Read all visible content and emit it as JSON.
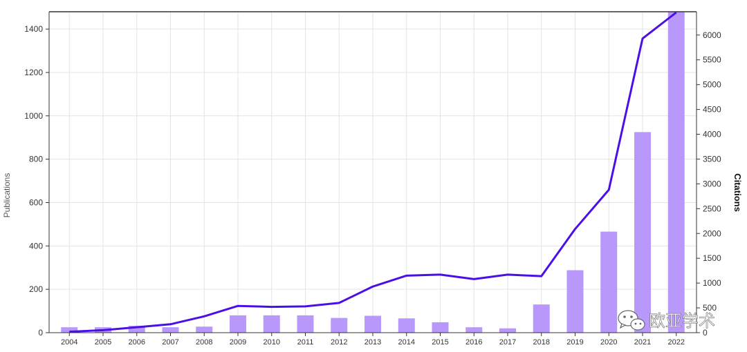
{
  "chart_data": {
    "type": "bar+line",
    "categories": [
      "2004",
      "2005",
      "2006",
      "2007",
      "2008",
      "2009",
      "2010",
      "2011",
      "2012",
      "2013",
      "2014",
      "2015",
      "2016",
      "2017",
      "2018",
      "2019",
      "2020",
      "2021",
      "2022"
    ],
    "series": [
      {
        "name": "Publications",
        "type": "bar",
        "axis": "left",
        "values": [
          25,
          25,
          32,
          25,
          28,
          80,
          80,
          80,
          68,
          78,
          66,
          48,
          25,
          20,
          130,
          288,
          466,
          925,
          1480
        ]
      },
      {
        "name": "Citations",
        "type": "line",
        "axis": "right",
        "values": [
          20,
          50,
          110,
          170,
          330,
          540,
          520,
          530,
          600,
          930,
          1150,
          1170,
          1080,
          1170,
          1140,
          2090,
          2880,
          5930,
          6480
        ]
      }
    ],
    "ylabel": "Publications",
    "y2label": "Citations",
    "ylim": [
      0,
      1480
    ],
    "y2lim": [
      0,
      6470
    ],
    "yticks": [
      0,
      200,
      400,
      600,
      800,
      1000,
      1200,
      1400
    ],
    "y2ticks": [
      0,
      500,
      1000,
      1500,
      2000,
      2500,
      3000,
      3500,
      4000,
      4500,
      5000,
      5500,
      6000
    ],
    "grid": true,
    "legend": "none",
    "colors": {
      "bar": "#b899fb",
      "line": "#4a0ee6",
      "grid": "#e3e3e3",
      "axis": "#333333"
    }
  },
  "watermark": {
    "text": "欧亚学术",
    "icon": "wechat-icon"
  }
}
